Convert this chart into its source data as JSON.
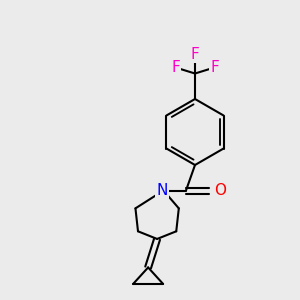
{
  "background_color": "#EBEBEB",
  "bond_color": "#000000",
  "bond_width": 1.5,
  "font_size": 11,
  "atom_colors": {
    "F": "#FF00CC",
    "N": "#0000FF",
    "O": "#FF0000",
    "C": "#000000"
  },
  "figsize": [
    3.0,
    3.0
  ],
  "dpi": 100
}
